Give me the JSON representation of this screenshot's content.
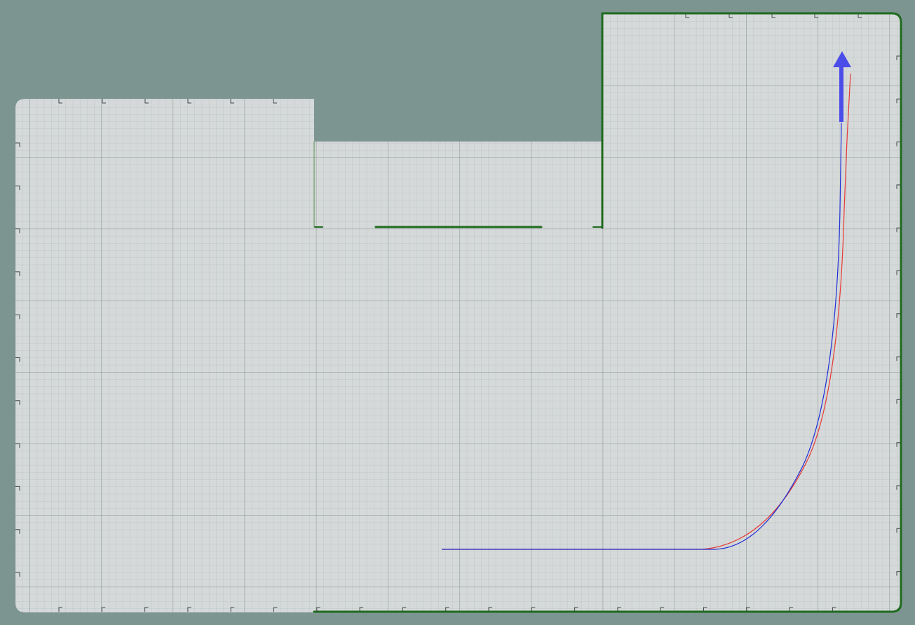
{
  "colors": {
    "background": "#7c9590",
    "free_space": "#d6d9d9",
    "fine_grid": "#a9b4b3",
    "major_grid": "#8f9c9b",
    "walls": "#1f6b1f",
    "planned_path": "#e53935",
    "actual_path": "#1f2fd6",
    "goal_arrow": "#4a4de8"
  },
  "icons": {
    "goal": "goal-arrow-up-icon"
  },
  "layers": [
    "occupancy-grid",
    "walls",
    "planned-path",
    "actual-path",
    "goal-arrow"
  ]
}
